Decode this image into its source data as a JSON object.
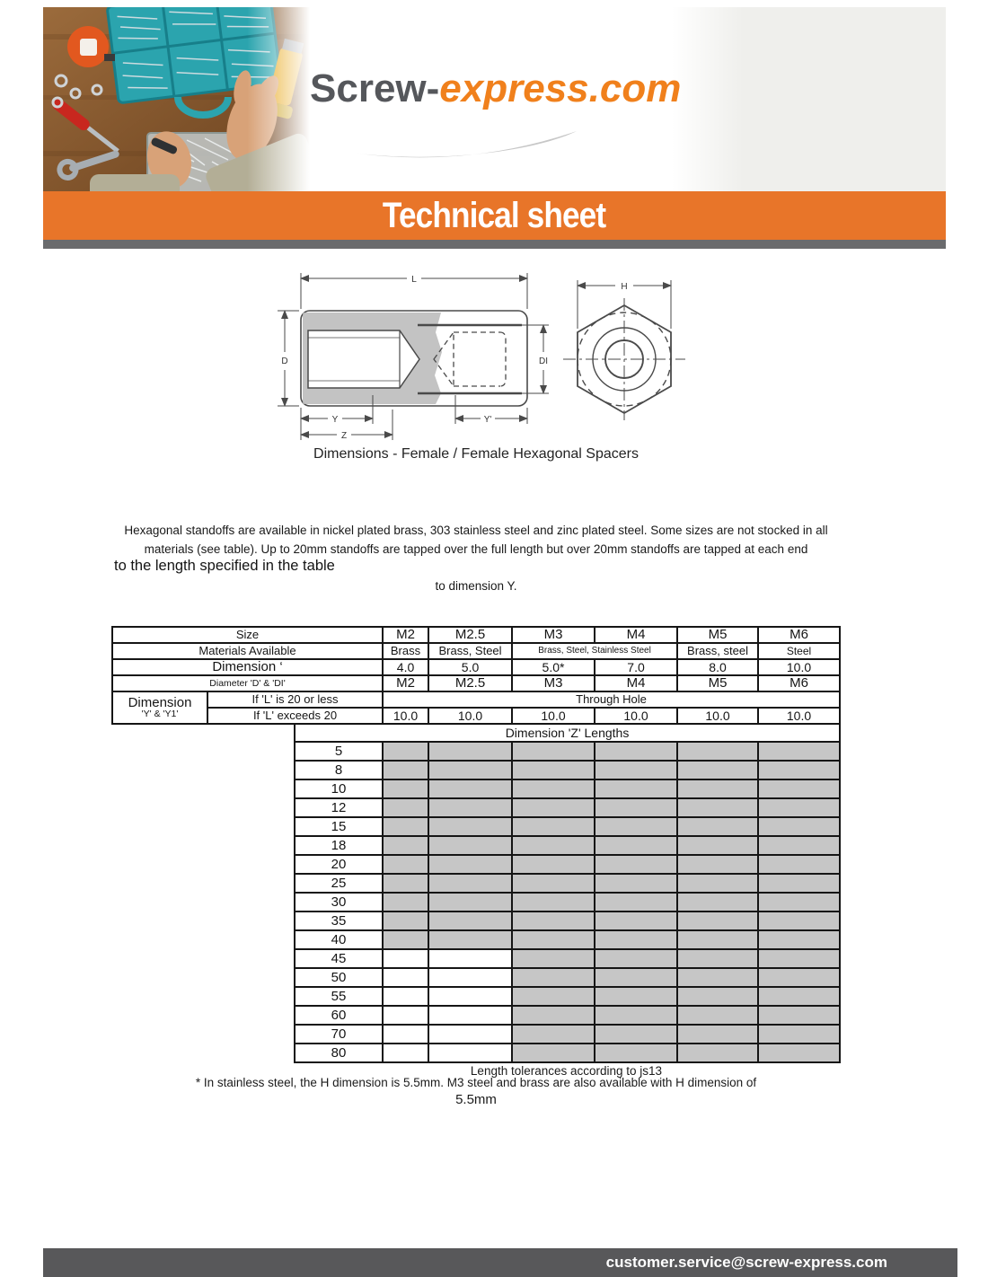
{
  "logo": {
    "part1": "Screw-",
    "part2": "express.com"
  },
  "banner": {
    "title": "Technical sheet"
  },
  "diagram": {
    "caption": "Dimensions - Female / Female Hexagonal Spacers",
    "labels": {
      "L": "L",
      "D": "D",
      "DI": "DI",
      "Y": "Y",
      "Z": "Z",
      "Y2": "Y'",
      "H": "H"
    }
  },
  "intro": {
    "line1": "Hexagonal standoffs are available in nickel plated brass, 303 stainless steel and zinc plated steel. Some sizes are not stocked in all",
    "line2": "materials (see table). Up to 20mm standoffs are tapped over the full length but over 20mm standoffs are tapped at each end",
    "line3": "to the length specified in the table",
    "line4": "to dimension Y."
  },
  "table": {
    "size_label": "Size",
    "sizes": [
      "M2",
      "M2.5",
      "M3",
      "M4",
      "M5",
      "M6"
    ],
    "materials_label": "Materials Available",
    "materials": [
      "Brass",
      "Brass, Steel",
      "Brass, Steel, Stainless Steel",
      "Brass, steel",
      "Steel"
    ],
    "dimension_h_label": "Dimension ‘",
    "dimension_h": [
      "4.0",
      "5.0",
      "5.0*",
      "7.0",
      "8.0",
      "10.0"
    ],
    "diameter_label": "Diameter 'D' & 'DI'",
    "diameters": [
      "M2",
      "M2.5",
      "M3",
      "M4",
      "M5",
      "M6"
    ],
    "dimension_y_label_line1": "Dimension",
    "dimension_y_label_line2": "'Y' & 'Y1'",
    "condition_1_label": "If 'L' is 20 or less",
    "condition_1_value": "Through Hole",
    "condition_2_label": "If 'L' exceeds 20",
    "condition_2_values": [
      "10.0",
      "10.0",
      "10.0",
      "10.0",
      "10.0",
      "10.0"
    ],
    "z_header": "Dimension 'Z' Lengths",
    "z_rows": [
      {
        "length": "5",
        "available": [
          true,
          true,
          true,
          true,
          true,
          true
        ]
      },
      {
        "length": "8",
        "available": [
          true,
          true,
          true,
          true,
          true,
          true
        ]
      },
      {
        "length": "10",
        "available": [
          true,
          true,
          true,
          true,
          true,
          true
        ]
      },
      {
        "length": "12",
        "available": [
          true,
          true,
          true,
          true,
          true,
          true
        ]
      },
      {
        "length": "15",
        "available": [
          true,
          true,
          true,
          true,
          true,
          true
        ]
      },
      {
        "length": "18",
        "available": [
          true,
          true,
          true,
          true,
          true,
          true
        ]
      },
      {
        "length": "20",
        "available": [
          true,
          true,
          true,
          true,
          true,
          true
        ]
      },
      {
        "length": "25",
        "available": [
          true,
          true,
          true,
          true,
          true,
          true
        ]
      },
      {
        "length": "30",
        "available": [
          true,
          true,
          true,
          true,
          true,
          true
        ]
      },
      {
        "length": "35",
        "available": [
          true,
          true,
          true,
          true,
          true,
          true
        ]
      },
      {
        "length": "40",
        "available": [
          true,
          true,
          true,
          true,
          true,
          true
        ]
      },
      {
        "length": "45",
        "available": [
          false,
          false,
          true,
          true,
          true,
          true
        ]
      },
      {
        "length": "50",
        "available": [
          false,
          false,
          true,
          true,
          true,
          true
        ]
      },
      {
        "length": "55",
        "available": [
          false,
          false,
          true,
          true,
          true,
          true
        ]
      },
      {
        "length": "60",
        "available": [
          false,
          false,
          true,
          true,
          true,
          true
        ]
      },
      {
        "length": "70",
        "available": [
          false,
          false,
          true,
          true,
          true,
          true
        ]
      },
      {
        "length": "80",
        "available": [
          false,
          false,
          true,
          true,
          true,
          true
        ]
      }
    ]
  },
  "notes": {
    "tolerance": "Length tolerances according to js13",
    "footnote_line1": "* In stainless steel, the H dimension is 5.5mm. M3 steel and brass are also available with H dimension of",
    "footnote_line2": "5.5mm"
  },
  "footer": {
    "email": "customer.service@screw-express.com"
  },
  "colors": {
    "accent_orange": "#e87529",
    "logo_orange": "#f0801c",
    "footer_gray": "#58585a",
    "cell_gray": "#c6c6c6"
  }
}
